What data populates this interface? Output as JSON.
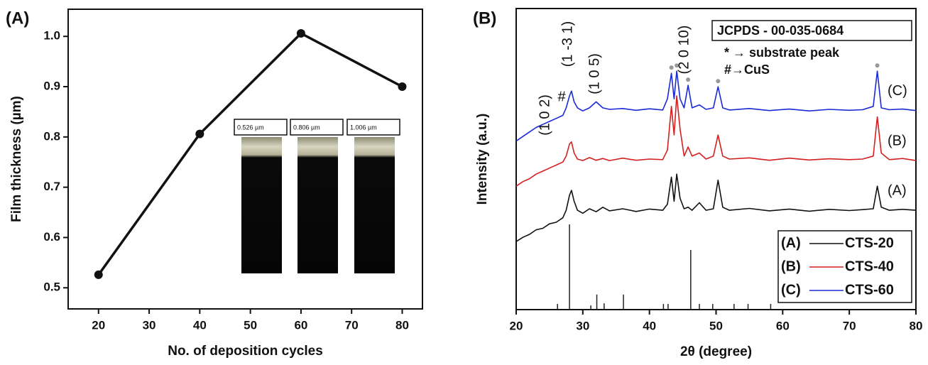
{
  "chart_data": [
    {
      "type": "line",
      "panel_label": "(A)",
      "x_label": "No. of deposition cycles",
      "y_label": "Film thickness (µm)",
      "x": [
        20,
        40,
        60,
        80
      ],
      "values": [
        0.526,
        0.806,
        1.006,
        0.9
      ],
      "color": "#111111",
      "xlim": [
        14,
        84
      ],
      "xticks": [
        20,
        30,
        40,
        50,
        60,
        70,
        80
      ],
      "ylim": [
        0.458,
        1.054
      ],
      "yticks": [
        0.5,
        0.6,
        0.7,
        0.8,
        0.9,
        {
          "value": 1,
          "label": "1.0"
        }
      ],
      "inset_labels": [
        "0.526 µm",
        "0.806 µm",
        "1.006 µm"
      ]
    },
    {
      "type": "line",
      "panel_label": "(B)",
      "x_label": "2θ (degree)",
      "y_label": "Intensity (a.u.)",
      "xlim": [
        20,
        80
      ],
      "xticks": [
        20,
        30,
        40,
        50,
        60,
        70,
        80
      ],
      "ylim": [
        0,
        100
      ],
      "series": [
        {
          "name": "CTS-20",
          "label": "(A)",
          "color": "#111111",
          "x": [
            20,
            21,
            22,
            23,
            24,
            25,
            26,
            27,
            27.5,
            28,
            28.3,
            28.7,
            29.2,
            30,
            31,
            32,
            33,
            34,
            36,
            38,
            40,
            42,
            42.7,
            43.3,
            43.7,
            44.1,
            44.6,
            45.2,
            45.8,
            46.4,
            47.5,
            48.5,
            49.6,
            50.3,
            51,
            52,
            55,
            58,
            61,
            64,
            67,
            70,
            72,
            73.6,
            74.2,
            74.8,
            76,
            78,
            80
          ],
          "values": [
            22.6,
            24,
            25,
            26.5,
            27,
            28.5,
            29,
            30.5,
            33,
            38,
            39.6,
            36,
            33,
            32,
            33.5,
            32.5,
            34,
            32.8,
            33.5,
            32.6,
            33.4,
            33,
            35,
            44,
            36,
            45,
            37,
            33.5,
            34,
            33,
            35.5,
            33,
            33.5,
            43,
            34,
            33,
            33.6,
            32.8,
            33.4,
            32.7,
            33.3,
            32.9,
            33.2,
            33.5,
            41,
            34,
            33,
            33.3,
            33
          ]
        },
        {
          "name": "CTS-40",
          "label": "(B)",
          "color": "#d42020",
          "x": [
            20,
            21,
            22,
            23,
            24,
            25,
            26,
            27,
            27.5,
            28,
            28.3,
            28.7,
            29.2,
            30,
            31,
            32,
            33,
            34,
            36,
            38,
            40,
            42,
            42.7,
            43.3,
            43.7,
            44.1,
            44.6,
            45.2,
            45.8,
            46.4,
            47.5,
            48.5,
            49.6,
            50.3,
            51,
            52,
            55,
            58,
            61,
            64,
            67,
            70,
            72,
            73.6,
            74.2,
            74.8,
            76,
            78,
            80
          ],
          "values": [
            41,
            42.5,
            43.5,
            45,
            46,
            47,
            48,
            49,
            51,
            55,
            55.7,
            52,
            50,
            49.5,
            50.5,
            49.6,
            50.2,
            49.5,
            50.3,
            49.6,
            50,
            49.8,
            53,
            67.5,
            58,
            71,
            60,
            51,
            54,
            51,
            52,
            50,
            51,
            58,
            51,
            50,
            50.4,
            49.6,
            50.3,
            49.7,
            50.1,
            49.8,
            50,
            51,
            64,
            52,
            49.8,
            50.2,
            49.5
          ]
        },
        {
          "name": "CTS-60",
          "label": "(C)",
          "color": "#1a2ad6",
          "x": [
            20,
            21,
            22,
            23,
            24,
            25,
            26,
            27,
            27.5,
            28,
            28.3,
            28.7,
            29.2,
            30,
            31,
            32,
            33,
            34,
            36,
            38,
            40,
            42,
            42.7,
            43.3,
            43.7,
            44.1,
            44.6,
            45.2,
            45.8,
            46.4,
            47.5,
            48.5,
            49.6,
            50.3,
            51,
            52,
            55,
            58,
            61,
            64,
            67,
            70,
            72,
            73.6,
            74.2,
            74.8,
            76,
            78,
            80
          ],
          "values": [
            56,
            57.5,
            59,
            60.5,
            61.5,
            62.5,
            63.5,
            64.5,
            67,
            71,
            72.6,
            69,
            67,
            66,
            67,
            69,
            67,
            66.5,
            66.8,
            66.2,
            66.7,
            66.3,
            70,
            78.5,
            70,
            79.2,
            70,
            67,
            74.5,
            67,
            68,
            66.5,
            67,
            74,
            67,
            66.3,
            66.8,
            66.1,
            66.6,
            66,
            66.5,
            66.2,
            66.4,
            67.5,
            79.2,
            67,
            66.4,
            66.6,
            66.1
          ]
        }
      ],
      "reference_peaks": {
        "x": [
          26.2,
          28,
          31.2,
          32.1,
          33.2,
          36.1,
          42.1,
          42.8,
          46.2,
          47.5,
          49.5,
          52.7,
          54.8,
          58.2
        ],
        "values": [
          1.9,
          28.3,
          1.4,
          5,
          2.1,
          5,
          1.9,
          1.9,
          19.8,
          1.9,
          1.9,
          1.9,
          1.9,
          1.9
        ]
      },
      "annotations": [
        "(1 0 2)",
        "(1 -3 1)",
        "(1 0 5)",
        "(2 0 10)",
        "#"
      ],
      "reference_card": "JCPDS -  00-035-0684",
      "key": [
        "* → substrate peak",
        "#→CuS"
      ]
    }
  ]
}
